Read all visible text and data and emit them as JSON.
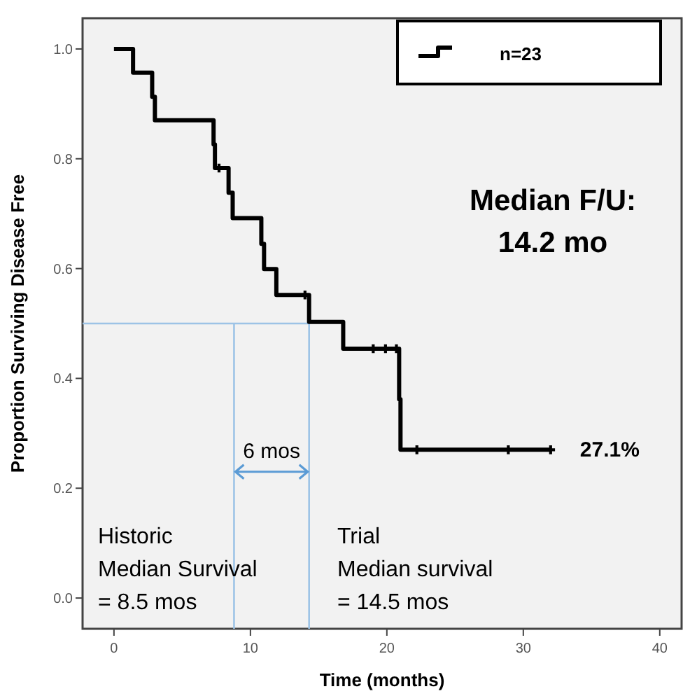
{
  "chart_data": {
    "type": "step",
    "xlabel": "Time (months)",
    "ylabel": "Proportion Surviving Disease Free",
    "xlim": [
      -2.3,
      41.6
    ],
    "ylim": [
      -0.056,
      1.056
    ],
    "xticks": [
      0,
      10,
      20,
      30,
      40
    ],
    "yticks": [
      {
        "value": 0,
        "label": "0.0"
      },
      {
        "value": 0.2,
        "label": "0.2"
      },
      {
        "value": 0.4,
        "label": "0.4"
      },
      {
        "value": 0.6,
        "label": "0.6"
      },
      {
        "value": 0.8,
        "label": "0.8"
      },
      {
        "value": 1,
        "label": "1.0"
      }
    ],
    "grid": false,
    "legend": "top right",
    "series": [
      {
        "name": "n=23",
        "color": "#000000",
        "x": [
          0,
          1.4,
          2.8,
          3.0,
          7.3,
          7.4,
          8.4,
          8.7,
          10.8,
          11.0,
          11.9,
          14.3,
          16.8,
          20.9,
          21.0,
          32.0
        ],
        "values": [
          1.0,
          0.957,
          0.913,
          0.87,
          0.826,
          0.783,
          0.738,
          0.692,
          0.645,
          0.599,
          0.552,
          0.503,
          0.454,
          0.362,
          0.27,
          0.27
        ]
      },
      {
        "color": "#000000",
        "type": "scatter",
        "marker": "cross",
        "x": [
          7.7,
          14.0,
          19.0,
          19.9,
          20.7,
          22.2,
          28.9,
          32.0
        ],
        "values": [
          0.783,
          0.552,
          0.454,
          0.454,
          0.454,
          0.27,
          0.27,
          0.27
        ]
      }
    ],
    "ref_lines": [
      {
        "axis": "x",
        "value": 8.8,
        "color": "#9dc3e6"
      },
      {
        "axis": "x",
        "value": 14.3,
        "color": "#9dc3e6"
      },
      {
        "axis": "y",
        "value": 0.5,
        "color": "#9dc3e6"
      }
    ],
    "annotations": [
      "Median F/U:\n14.2 mo",
      {
        "text": "27.1%",
        "x": 32.0,
        "y": 0.27
      },
      "6 mos",
      "Historic\nMedian Survival\n= 8.5 mos",
      "Trial\nMedian survival\n= 14.5 mos"
    ]
  }
}
